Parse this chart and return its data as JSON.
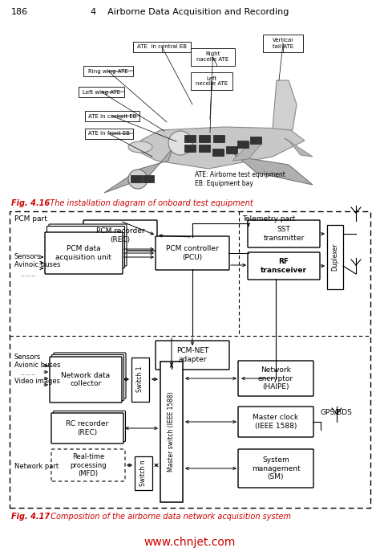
{
  "page_number": "186",
  "chapter_header": "4    Airborne Data Acquisition and Recording",
  "fig16_caption_bold": "Fig. 4.16",
  "fig16_caption_text": "  The installation diagram of onboard test equipment",
  "fig17_caption_bold": "Fig. 4.17",
  "fig17_caption_text": "  Composition of the airborne data network acquisition system",
  "website": "www.chnjet.com",
  "bg": "#ffffff",
  "black": "#000000",
  "red": "#cc0000"
}
